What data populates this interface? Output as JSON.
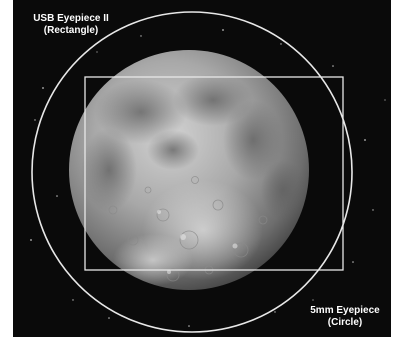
{
  "annotations": {
    "usb_eyepiece": {
      "line1": "USB Eyepiece II",
      "line2": "(Rectangle)"
    },
    "mm_eyepiece": {
      "line1": "5mm Eyepiece",
      "line2": "(Circle)"
    }
  },
  "colors": {
    "sky": "#0a0a0a",
    "outline": "#e8e8e8",
    "moon_light": "#c9c9c9",
    "moon_dark": "#5a5a5a"
  },
  "scene": {
    "subject": "moon-icon",
    "overlays": [
      "circle-outline",
      "rectangle-outline"
    ]
  }
}
